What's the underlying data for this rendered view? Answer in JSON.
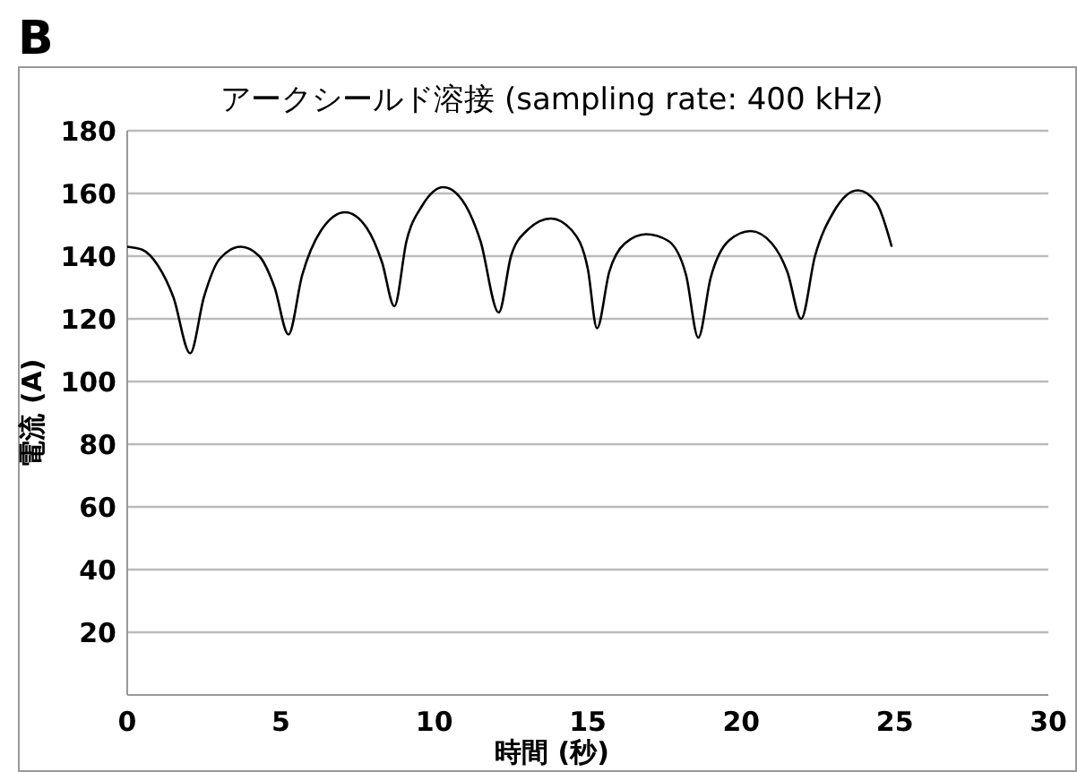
{
  "chart_data": {
    "type": "line",
    "title": "アークシールド溶接 (sampling rate: 400 kHz)",
    "xlabel": "時間 (秒)",
    "ylabel": "電流 (A)",
    "annotations": [
      "B"
    ],
    "xlim": [
      0,
      30
    ],
    "xticks": [
      0,
      5,
      10,
      15,
      20,
      25,
      30
    ],
    "ylim": [
      0,
      180
    ],
    "yticks": [
      20,
      40,
      60,
      80,
      100,
      120,
      140,
      160,
      180
    ],
    "grid": "y",
    "marker": "none",
    "line_style": "solid",
    "series": [
      {
        "color": "#000000",
        "x": [
          0,
          0.5,
          1.0,
          1.5,
          2.05,
          2.5,
          3.0,
          3.7,
          4.3,
          4.8,
          5.25,
          5.7,
          6.3,
          7.1,
          7.8,
          8.3,
          8.7,
          9.1,
          9.6,
          10.3,
          10.9,
          11.5,
          12.1,
          12.5,
          13.0,
          13.8,
          14.5,
          15.0,
          15.3,
          15.7,
          16.2,
          16.9,
          17.6,
          18.2,
          18.6,
          19.0,
          19.6,
          20.3,
          21.0,
          21.5,
          21.95,
          22.4,
          23.0,
          23.8,
          24.4,
          24.9
        ],
        "values": [
          143,
          142,
          137,
          127,
          109,
          127,
          139,
          143,
          140,
          130,
          115,
          134,
          148,
          154,
          149,
          138,
          124,
          145,
          156,
          162,
          158,
          145,
          122,
          140,
          148,
          152,
          148,
          136,
          117,
          135,
          144,
          147,
          145,
          134,
          114,
          133,
          145,
          148,
          144,
          135,
          120,
          140,
          154,
          161,
          157,
          143
        ]
      }
    ]
  }
}
